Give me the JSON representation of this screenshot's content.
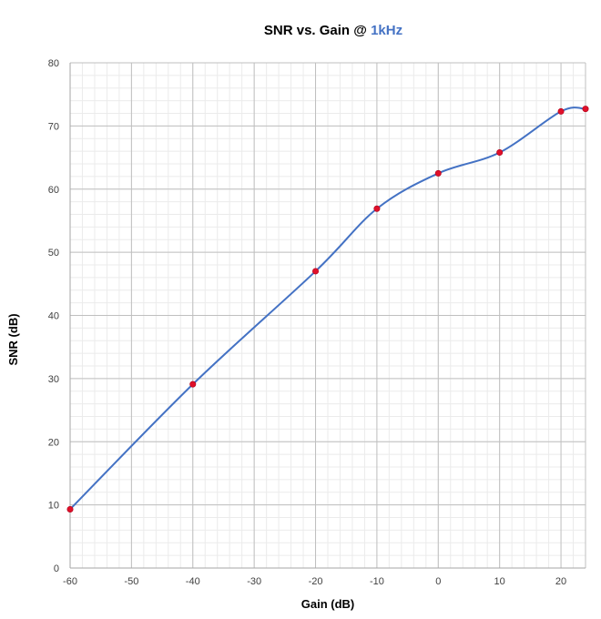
{
  "chart_data": {
    "type": "line",
    "title": "SNR vs. Gain @ ",
    "title_highlight": "1kHz",
    "xlabel": "Gain (dB)",
    "ylabel": "SNR (dB)",
    "xlim": [
      -60,
      24
    ],
    "ylim": [
      0,
      80
    ],
    "xticks": [
      -60,
      -50,
      -40,
      -30,
      -20,
      -10,
      0,
      10,
      20
    ],
    "yticks": [
      0,
      10,
      20,
      30,
      40,
      50,
      60,
      70,
      80
    ],
    "grid": true,
    "smooth": true,
    "series": [
      {
        "x": [
          -60,
          -40,
          -20,
          -10,
          0,
          10,
          20,
          24
        ],
        "y": [
          9.3,
          29.1,
          47.0,
          56.9,
          62.5,
          65.8,
          72.3,
          72.7
        ]
      }
    ],
    "colors": {
      "line": "#4472C4",
      "marker": "#E0102A",
      "title_highlight": "#4472C4",
      "major_grid": "#BFBFBF",
      "minor_grid": "#EBEBEB"
    }
  }
}
